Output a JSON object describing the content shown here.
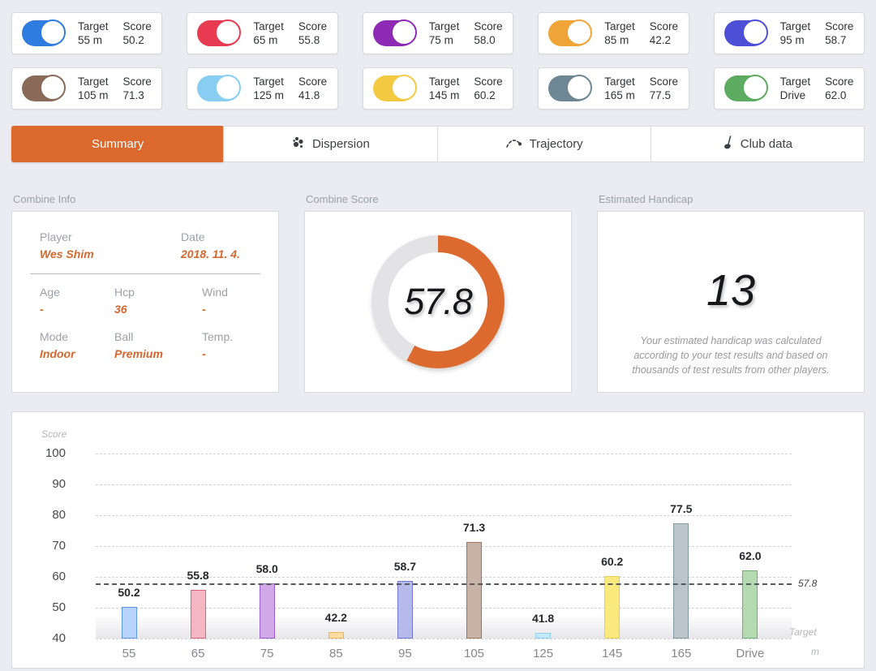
{
  "cards": {
    "target_label": "Target",
    "score_label": "Score",
    "items": [
      {
        "target": "55 m",
        "score": "50.2",
        "color": "#2e7ce0"
      },
      {
        "target": "65 m",
        "score": "55.8",
        "color": "#e73b52"
      },
      {
        "target": "75 m",
        "score": "58.0",
        "color": "#8e2bb4"
      },
      {
        "target": "85 m",
        "score": "42.2",
        "color": "#f0a538"
      },
      {
        "target": "95 m",
        "score": "58.7",
        "color": "#4d50d6"
      },
      {
        "target": "105 m",
        "score": "71.3",
        "color": "#8a6a58"
      },
      {
        "target": "125 m",
        "score": "41.8",
        "color": "#87cef2"
      },
      {
        "target": "145 m",
        "score": "60.2",
        "color": "#f2c940"
      },
      {
        "target": "165 m",
        "score": "77.5",
        "color": "#6e8795"
      },
      {
        "target": "Drive",
        "score": "62.0",
        "color": "#5cab60"
      }
    ]
  },
  "tabs": [
    {
      "label": "Summary",
      "icon": null,
      "active": true
    },
    {
      "label": "Dispersion",
      "icon": "dispersion-icon",
      "active": false
    },
    {
      "label": "Trajectory",
      "icon": "trajectory-icon",
      "active": false
    },
    {
      "label": "Club data",
      "icon": "club-data-icon",
      "active": false
    }
  ],
  "accent_color": "#dc6a2e",
  "combine_info": {
    "title": "Combine Info",
    "fields": [
      {
        "label": "Player",
        "value": "Wes Shim"
      },
      {
        "label": "Date",
        "value": "2018. 11. 4."
      },
      {
        "label": "Age",
        "value": "-"
      },
      {
        "label": "Hcp",
        "value": "36"
      },
      {
        "label": "Wind",
        "value": "-"
      },
      {
        "label": "Mode",
        "value": "Indoor"
      },
      {
        "label": "Ball",
        "value": "Premium"
      },
      {
        "label": "Temp.",
        "value": "-"
      }
    ]
  },
  "combine_score": {
    "title": "Combine Score",
    "value": 57.8,
    "display": "57.8",
    "arc_color": "#dc6a2e",
    "track_color": "#e3e3e5"
  },
  "estimated_handicap": {
    "title": "Estimated Handicap",
    "value": "13",
    "description": "Your estimated handicap was calculated according to your test results and based on thousands of test results from other players."
  },
  "chart_data": {
    "type": "bar",
    "title": "",
    "ylabel": "Score",
    "xlabel_line1": "Target",
    "xlabel_line2": "m",
    "categories": [
      "55",
      "65",
      "75",
      "85",
      "95",
      "105",
      "125",
      "145",
      "165",
      "Drive"
    ],
    "values": [
      50.2,
      55.8,
      58.0,
      42.2,
      58.7,
      71.3,
      41.8,
      60.2,
      77.5,
      62.0
    ],
    "ylim": [
      40,
      100
    ],
    "yticks": [
      100,
      90,
      80,
      70,
      60,
      50,
      40
    ],
    "grid": true,
    "average_line": 57.8,
    "average_label": "57.8",
    "bar_colors": [
      {
        "fill": "#b7d3f7",
        "border": "#5f96ea"
      },
      {
        "fill": "#f4b6c3",
        "border": "#e06279"
      },
      {
        "fill": "#d2a9e8",
        "border": "#9c5ecb"
      },
      {
        "fill": "#fbdda4",
        "border": "#eeb257"
      },
      {
        "fill": "#b6baea",
        "border": "#7277d6"
      },
      {
        "fill": "#c9b3a7",
        "border": "#987764"
      },
      {
        "fill": "#c5e7fa",
        "border": "#90d0f0"
      },
      {
        "fill": "#fae97c",
        "border": "#e3ce52"
      },
      {
        "fill": "#b9c5cb",
        "border": "#8299a4"
      },
      {
        "fill": "#b4dab2",
        "border": "#74ad74"
      }
    ]
  }
}
